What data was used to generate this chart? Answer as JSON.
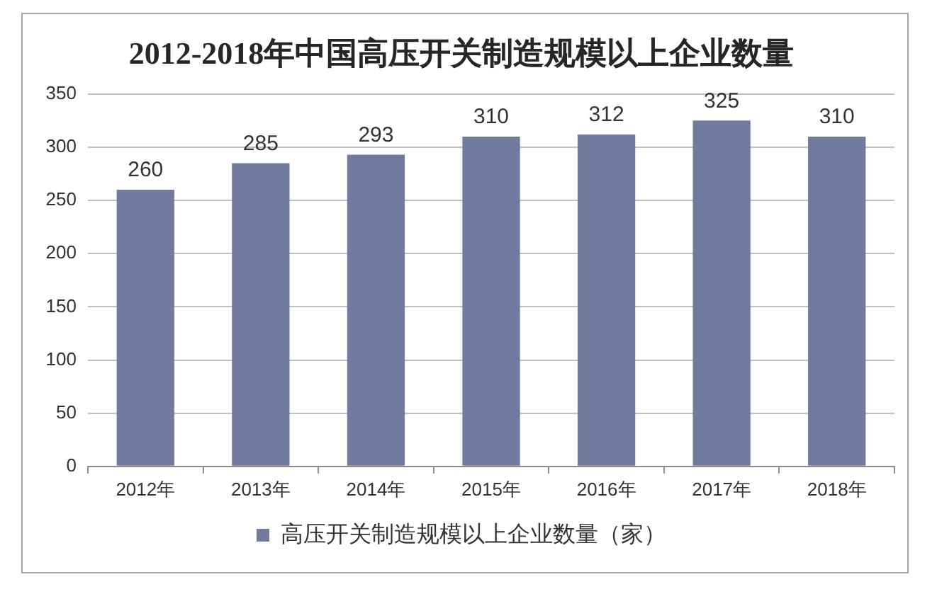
{
  "chart_data": {
    "type": "bar",
    "title": "2012-2018年中国高压开关制造规模以上企业数量",
    "categories": [
      "2012年",
      "2013年",
      "2014年",
      "2015年",
      "2016年",
      "2017年",
      "2018年"
    ],
    "series": [
      {
        "name": "高压开关制造规模以上企业数量（家）",
        "color": "#717ba0",
        "values": [
          260,
          285,
          293,
          310,
          312,
          325,
          310
        ]
      }
    ],
    "ylim": [
      0,
      350
    ],
    "yticks": [
      0,
      50,
      100,
      150,
      200,
      250,
      300,
      350
    ],
    "grid": "y",
    "legend": "bottom",
    "data_labels": true
  }
}
